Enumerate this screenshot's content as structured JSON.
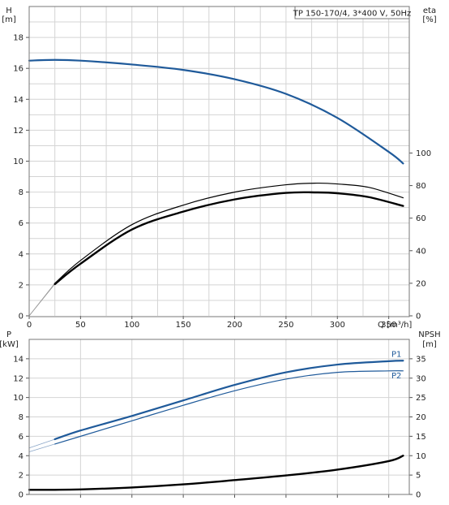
{
  "chart_data": [
    {
      "type": "line",
      "title": "TP 150-170/4, 3*400 V, 50Hz",
      "xlabel": "Q [m³/h]",
      "ylabel_left": {
        "line1": "H",
        "line2": "[m]"
      },
      "ylabel_right": {
        "line1": "eta",
        "line2": "[%]"
      },
      "xlim": [
        0,
        370
      ],
      "ylim_left": [
        0,
        20
      ],
      "ylim_right": [
        0,
        190
      ],
      "x_ticks": [
        "0",
        "50",
        "100",
        "150",
        "200",
        "250",
        "300",
        "350"
      ],
      "y_ticks_left": [
        "0",
        "2",
        "4",
        "6",
        "8",
        "10",
        "12",
        "14",
        "16",
        "18"
      ],
      "y_ticks_right": [
        "0",
        "20",
        "40",
        "60",
        "80",
        "100"
      ],
      "grid": true,
      "series": [
        {
          "id": "head",
          "axis": "left",
          "color": "#1f5a9a",
          "x": [
            0,
            25,
            50,
            100,
            150,
            200,
            250,
            300,
            350,
            364
          ],
          "y": [
            16.5,
            16.55,
            16.5,
            16.25,
            15.9,
            15.3,
            14.35,
            12.8,
            10.6,
            9.85
          ]
        },
        {
          "id": "eta-thin",
          "axis": "right",
          "color": "#000000",
          "x": [
            25,
            50,
            100,
            150,
            200,
            250,
            280,
            300,
            330,
            364
          ],
          "y": [
            20,
            34,
            56,
            68,
            76,
            80.5,
            81.5,
            81,
            79,
            72.5
          ]
        },
        {
          "id": "eta-thick",
          "axis": "right",
          "color": "#000000",
          "x": [
            25,
            50,
            100,
            150,
            200,
            250,
            280,
            300,
            330,
            364
          ],
          "y": [
            19.5,
            32,
            53,
            64,
            71.5,
            75.5,
            75.8,
            75.3,
            73,
            67.5
          ]
        }
      ]
    },
    {
      "type": "line",
      "xlabel": "",
      "ylabel_left": {
        "line1": "P",
        "line2": "[kW]"
      },
      "ylabel_right": {
        "line1": "NPSH",
        "line2": "[m]"
      },
      "xlim": [
        0,
        370
      ],
      "ylim_left": [
        0,
        16
      ],
      "ylim_right": [
        0,
        40
      ],
      "y_ticks_left": [
        "0",
        "2",
        "4",
        "6",
        "8",
        "10",
        "12",
        "14"
      ],
      "y_ticks_right": [
        "0",
        "5",
        "10",
        "15",
        "20",
        "25",
        "30",
        "35"
      ],
      "grid": true,
      "series": [
        {
          "id": "P1",
          "name": "P1",
          "axis": "left",
          "color": "#1f5a9a",
          "x": [
            25,
            50,
            100,
            150,
            200,
            250,
            300,
            350,
            364
          ],
          "y": [
            5.7,
            6.6,
            8.1,
            9.7,
            11.3,
            12.6,
            13.4,
            13.75,
            13.8
          ]
        },
        {
          "id": "P2",
          "name": "P2",
          "axis": "left",
          "color": "#1f5a9a",
          "x": [
            25,
            50,
            100,
            150,
            200,
            250,
            300,
            350,
            364
          ],
          "y": [
            5.2,
            6.0,
            7.6,
            9.2,
            10.7,
            11.9,
            12.6,
            12.75,
            12.75
          ]
        },
        {
          "id": "npsh",
          "axis": "right",
          "color": "#000000",
          "x": [
            0,
            25,
            50,
            100,
            150,
            200,
            250,
            300,
            350,
            364
          ],
          "y": [
            1.2,
            1.2,
            1.3,
            1.8,
            2.6,
            3.7,
            4.9,
            6.4,
            8.6,
            10
          ]
        }
      ]
    }
  ]
}
